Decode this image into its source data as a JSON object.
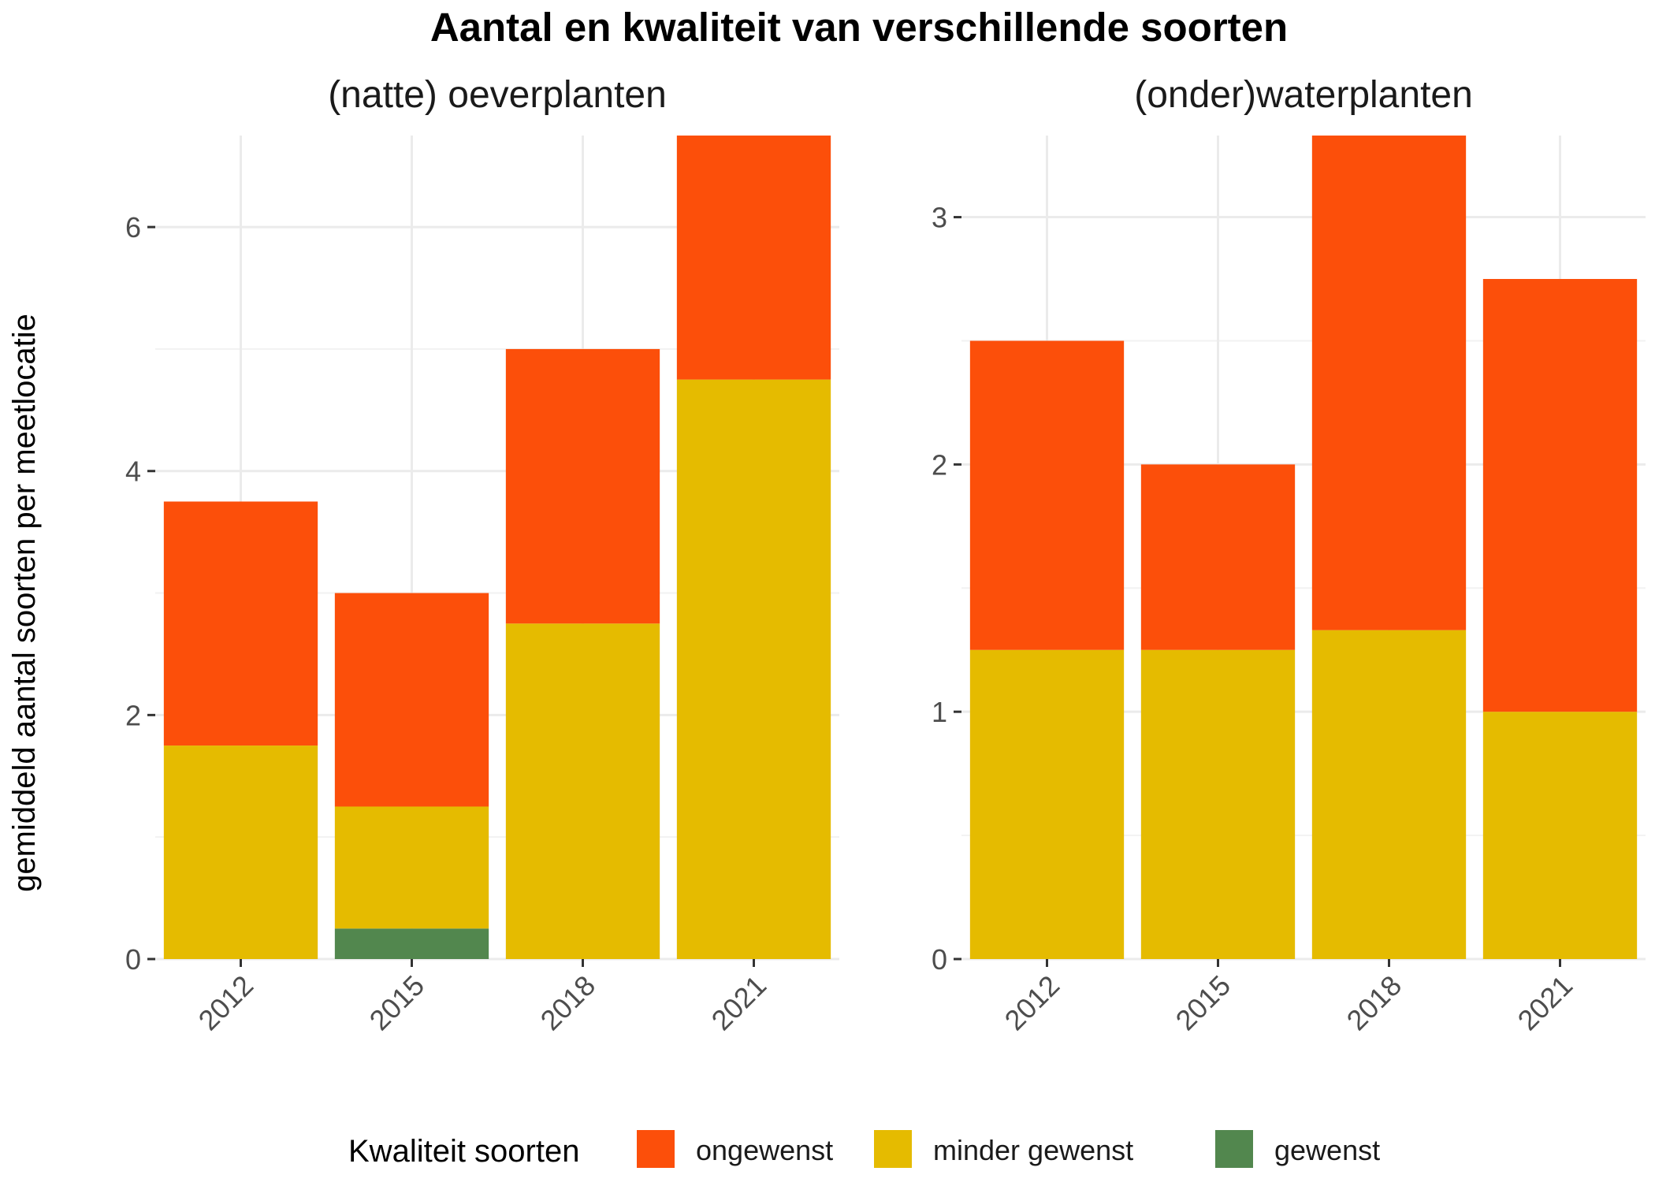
{
  "title": "Aantal en kwaliteit van verschillende soorten",
  "ylabel": "gemiddeld aantal soorten per meetlocatie",
  "legend": {
    "title": "Kwaliteit soorten",
    "position": "bottom",
    "items": [
      {
        "label": "ongewenst",
        "color": "#FC4F0A"
      },
      {
        "label": "minder gewenst",
        "color": "#E5BB00"
      },
      {
        "label": "gewenst",
        "color": "#52874E"
      }
    ]
  },
  "chart_data": [
    {
      "type": "bar",
      "stacked": true,
      "title": "(natte) oeverplanten",
      "xlabel": "",
      "ylabel": "gemiddeld aantal soorten per meetlocatie",
      "categories": [
        "2012",
        "2015",
        "2018",
        "2021"
      ],
      "ylim": [
        0,
        6.75
      ],
      "yticks": [
        0,
        2,
        4,
        6
      ],
      "grid": true,
      "series": [
        {
          "name": "gewenst",
          "color": "#52874E",
          "values": [
            0,
            0.25,
            0,
            0
          ]
        },
        {
          "name": "minder gewenst",
          "color": "#E5BB00",
          "values": [
            1.75,
            1.0,
            2.75,
            4.75
          ]
        },
        {
          "name": "ongewenst",
          "color": "#FC4F0A",
          "values": [
            2.0,
            1.75,
            2.25,
            2.0
          ]
        }
      ]
    },
    {
      "type": "bar",
      "stacked": true,
      "title": "(onder)waterplanten",
      "xlabel": "",
      "ylabel": "gemiddeld aantal soorten per meetlocatie",
      "categories": [
        "2012",
        "2015",
        "2018",
        "2021"
      ],
      "ylim": [
        0,
        3.33
      ],
      "yticks": [
        0,
        1,
        2,
        3
      ],
      "grid": true,
      "series": [
        {
          "name": "gewenst",
          "color": "#52874E",
          "values": [
            0,
            0,
            0,
            0
          ]
        },
        {
          "name": "minder gewenst",
          "color": "#E5BB00",
          "values": [
            1.25,
            1.25,
            1.33,
            1.0
          ]
        },
        {
          "name": "ongewenst",
          "color": "#FC4F0A",
          "values": [
            1.25,
            0.75,
            2.0,
            1.75
          ]
        }
      ]
    }
  ]
}
